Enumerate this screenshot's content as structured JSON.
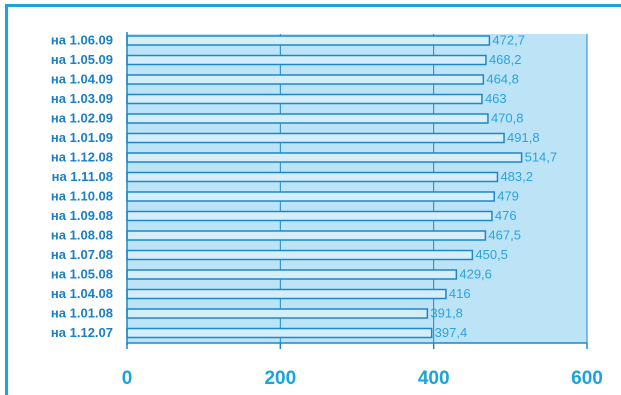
{
  "chart_data": {
    "type": "bar",
    "orientation": "horizontal",
    "categories": [
      "на 1.06.09",
      "на 1.05.09",
      "на 1.04.09",
      "на 1.03.09",
      "на 1.02.09",
      "на 1.01.09",
      "на 1.12.08",
      "на 1.11.08",
      "на 1.10.08",
      "на 1.09.08",
      "на 1.08.08",
      "на 1.07.08",
      "на 1.05.08",
      "на 1.04.08",
      "на 1.01.08",
      "на 1.12.07"
    ],
    "values": [
      472.7,
      468.2,
      464.8,
      463,
      470.8,
      491.8,
      514.7,
      483.2,
      479,
      476,
      467.5,
      450.5,
      429.6,
      416,
      391.8,
      397.4
    ],
    "value_labels": [
      "472,7",
      "468,2",
      "464,8",
      "463",
      "470,8",
      "491,8",
      "514,7",
      "483,2",
      "479",
      "476",
      "467,5",
      "450,5",
      "429,6",
      "416",
      "391,8",
      "397,4"
    ],
    "x_ticks": [
      "0",
      "200",
      "400",
      "600"
    ],
    "xlim": [
      0,
      600
    ],
    "title": "",
    "xlabel": "",
    "ylabel": "",
    "grid": true,
    "colors": {
      "frame": "#1aa3dc",
      "plot_background": "#bde3f6",
      "bar_fill": "#d6eefa",
      "bar_stroke": "#1b88c9",
      "category_text": "#1b7fc4",
      "value_text": "#2aa3e0",
      "tick_text": "#1aa3dc"
    }
  }
}
